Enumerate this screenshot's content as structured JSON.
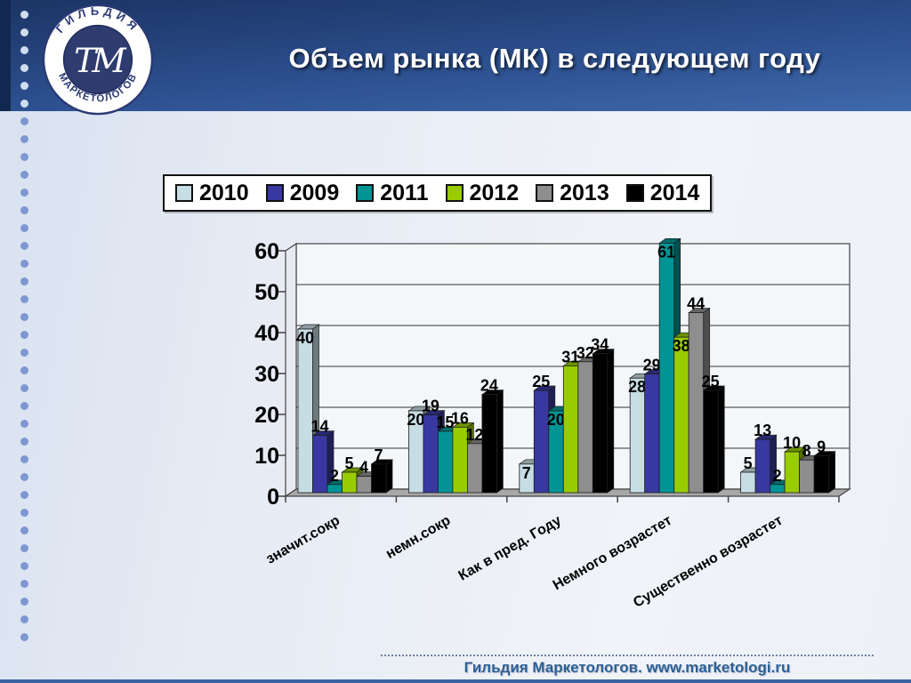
{
  "slide": {
    "title": "Объем рынка (МК) в следующем году",
    "footer": "Гильдия Маркетологов. www.marketologi.ru",
    "logo": {
      "top_text": "ГИЛЬДИЯ",
      "bottom_text": "МАРКЕТОЛОГОВ",
      "monogram": "ТМ"
    }
  },
  "chart_data": {
    "type": "bar",
    "style": "3d-clustered-column",
    "title": "",
    "xlabel": "",
    "ylabel": "",
    "categories": [
      "значит.сокр",
      "немн.сокр",
      "Как в пред. Году",
      "Немного возрастет",
      "Существенно возрастет"
    ],
    "series": [
      {
        "name": "2010",
        "color": "#c6dde4",
        "values": [
          40,
          20,
          7,
          28,
          5
        ]
      },
      {
        "name": "2009",
        "color": "#3838a0",
        "values": [
          14,
          19,
          25,
          29,
          13
        ]
      },
      {
        "name": "2011",
        "color": "#009494",
        "values": [
          2,
          15,
          20,
          61,
          2
        ]
      },
      {
        "name": "2012",
        "color": "#99cc00",
        "values": [
          5,
          16,
          31,
          38,
          10
        ]
      },
      {
        "name": "2013",
        "color": "#8e8e8e",
        "values": [
          4,
          12,
          32,
          44,
          8
        ]
      },
      {
        "name": "2014",
        "color": "#000000",
        "values": [
          7,
          24,
          34,
          25,
          9
        ]
      }
    ],
    "ylim": [
      0,
      60
    ],
    "yticks": [
      0,
      10,
      20,
      30,
      40,
      50,
      60
    ],
    "grid": true,
    "legend_position": "top",
    "value_labels": true,
    "plot_bg": "#f4f7fa",
    "floor_color": "#a8a8a8",
    "gridline_color": "#5a5a5a"
  }
}
